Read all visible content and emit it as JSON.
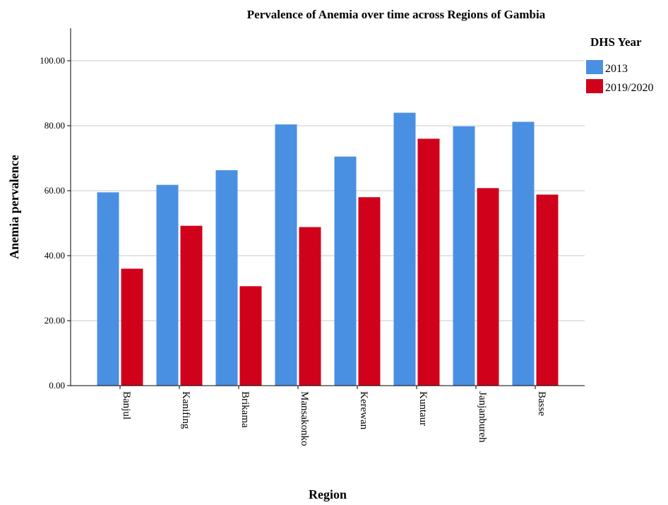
{
  "chart_data": {
    "type": "bar",
    "title": "Pervalence of Anemia over time across Regions of Gambia",
    "xlabel": "Region",
    "ylabel": "Anemia pervalence",
    "categories": [
      "Banjul",
      "Kanifing",
      "Brikama",
      "Mansakonko",
      "Kerewan",
      "Kuntaur",
      "Janjanbureh",
      "Basse"
    ],
    "series": [
      {
        "name": "2013",
        "color": "#4a90e2",
        "values": [
          59.5,
          61.8,
          66.3,
          80.4,
          70.5,
          84.0,
          79.8,
          81.2
        ]
      },
      {
        "name": "2019/2020",
        "color": "#d0021b",
        "values": [
          36.0,
          49.2,
          30.6,
          48.8,
          58.0,
          76.0,
          60.8,
          58.8
        ]
      }
    ],
    "ylim": [
      0,
      110
    ],
    "yticks": [
      "0.00",
      "20.00",
      "40.00",
      "60.00",
      "80.00",
      "100.00"
    ],
    "grid": true,
    "legend": {
      "title": "DHS Year",
      "position": "top-right"
    }
  }
}
